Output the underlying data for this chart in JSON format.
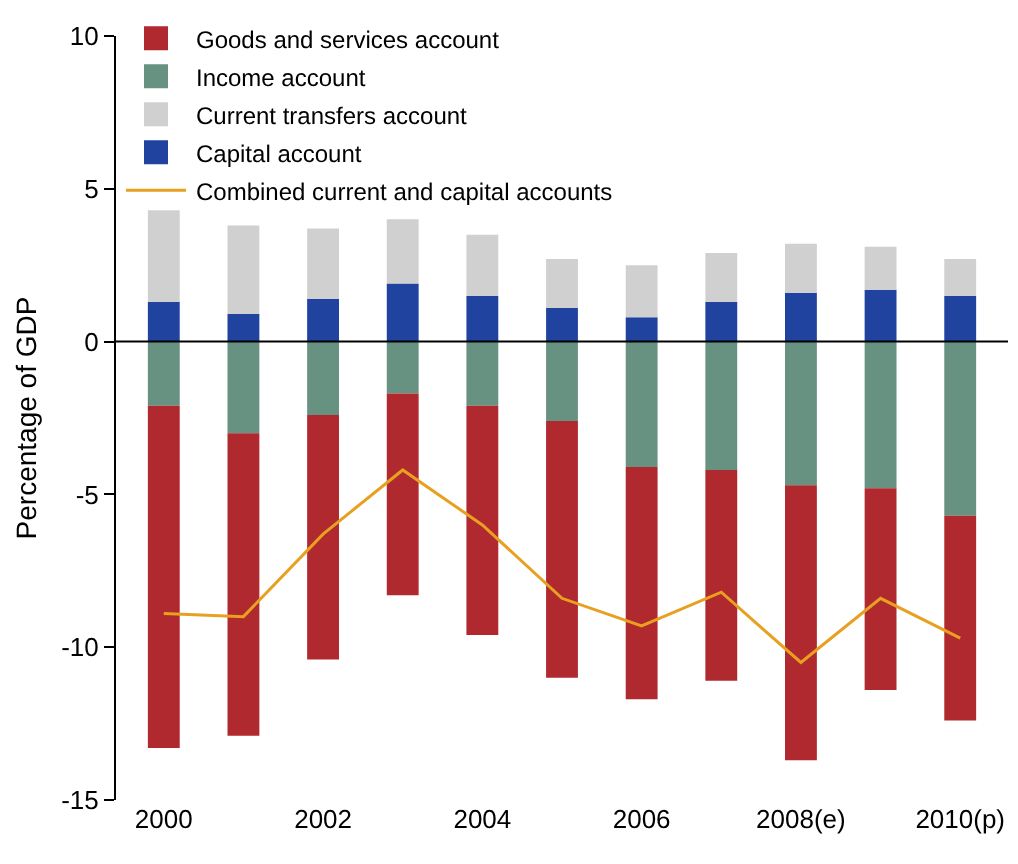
{
  "chart_data": {
    "type": "bar",
    "stacked": true,
    "ylabel": "Percentage of GDP",
    "categories": [
      "2000",
      null,
      "2002",
      null,
      "2004",
      null,
      "2006",
      null,
      "2008(e)",
      null,
      "2010(p)"
    ],
    "series": [
      {
        "name": "Capital account",
        "color": "#2043a0",
        "values": [
          1.3,
          0.9,
          1.4,
          1.9,
          1.5,
          1.1,
          0.8,
          1.3,
          1.6,
          1.7,
          1.5
        ]
      },
      {
        "name": "Current transfers account",
        "color": "#d0d0d0",
        "values": [
          3.0,
          2.9,
          2.3,
          2.1,
          2.0,
          1.6,
          1.7,
          1.6,
          1.6,
          1.4,
          1.2
        ]
      },
      {
        "name": "Income account",
        "color": "#679180",
        "values": [
          -2.1,
          -3.0,
          -2.4,
          -1.7,
          -2.1,
          -2.6,
          -4.1,
          -4.2,
          -4.7,
          -4.8,
          -5.7
        ]
      },
      {
        "name": "Goods and services account",
        "color": "#b0292f",
        "values": [
          -11.2,
          -9.9,
          -8.0,
          -6.6,
          -7.5,
          -8.4,
          -7.6,
          -6.9,
          -9.0,
          -6.6,
          -6.7
        ]
      },
      {
        "name": "Combined current and capital accounts",
        "type": "line",
        "color": "#e8a020",
        "values": [
          -8.9,
          -9.0,
          -6.3,
          -4.2,
          -6.0,
          -8.4,
          -9.3,
          -8.2,
          -10.5,
          -8.4,
          -9.7
        ]
      }
    ],
    "ylim": [
      -15,
      10
    ],
    "yticks": [
      -15,
      -10,
      -5,
      0,
      5,
      10
    ],
    "ref_lines": [
      {
        "axis": "y",
        "value": 0,
        "color": "#000000"
      }
    ],
    "legend": "top left"
  }
}
